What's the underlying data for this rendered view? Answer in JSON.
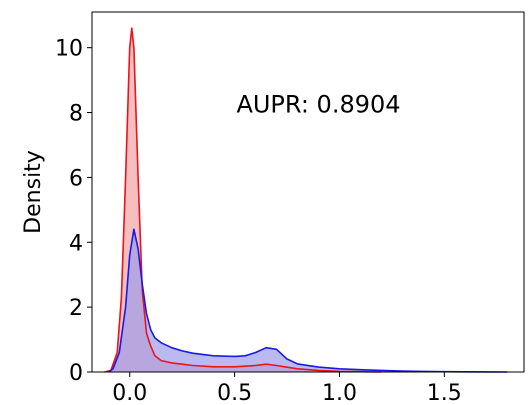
{
  "chart_data": {
    "type": "area",
    "title": "",
    "xlabel": "",
    "ylabel": "Density",
    "xlim": [
      -0.18,
      1.88
    ],
    "ylim": [
      0,
      11.1
    ],
    "x_ticks": [
      {
        "value": 0.0,
        "label": "0.0"
      },
      {
        "value": 0.5,
        "label": "0.5"
      },
      {
        "value": 1.0,
        "label": "1.0"
      },
      {
        "value": 1.5,
        "label": "1.5"
      }
    ],
    "y_ticks": [
      {
        "value": 0,
        "label": "0"
      },
      {
        "value": 2,
        "label": "2"
      },
      {
        "value": 4,
        "label": "4"
      },
      {
        "value": 6,
        "label": "6"
      },
      {
        "value": 8,
        "label": "8"
      },
      {
        "value": 10,
        "label": "10"
      }
    ],
    "grid": false,
    "annotation": {
      "text": "AUPR: 0.8904",
      "x": 0.9,
      "y": 8.0
    },
    "series": [
      {
        "color": "#e8141e",
        "fill": "#f4a3a5",
        "x": [
          -0.12,
          -0.09,
          -0.06,
          -0.04,
          -0.02,
          0.0,
          0.01,
          0.02,
          0.04,
          0.06,
          0.08,
          0.1,
          0.12,
          0.15,
          0.2,
          0.25,
          0.3,
          0.4,
          0.5,
          0.6,
          0.65,
          0.7,
          0.8,
          0.9,
          1.0,
          1.1,
          1.2
        ],
        "y": [
          0,
          0.05,
          0.6,
          2.3,
          6.0,
          10.0,
          10.6,
          10.0,
          6.0,
          2.5,
          1.2,
          0.8,
          0.5,
          0.35,
          0.28,
          0.24,
          0.2,
          0.16,
          0.16,
          0.2,
          0.24,
          0.2,
          0.1,
          0.05,
          0.02,
          0.01,
          0
        ]
      },
      {
        "color": "#1a1ae6",
        "fill": "#9c9ceb",
        "x": [
          -0.1,
          -0.08,
          -0.05,
          -0.02,
          0.0,
          0.02,
          0.04,
          0.06,
          0.08,
          0.1,
          0.12,
          0.15,
          0.2,
          0.25,
          0.3,
          0.4,
          0.5,
          0.55,
          0.6,
          0.65,
          0.7,
          0.75,
          0.8,
          0.9,
          1.0,
          1.1,
          1.2,
          1.3,
          1.4,
          1.5,
          1.6,
          1.7,
          1.8
        ],
        "y": [
          0,
          0.1,
          0.6,
          2.0,
          3.6,
          4.4,
          3.8,
          2.7,
          1.8,
          1.3,
          1.05,
          0.9,
          0.75,
          0.65,
          0.58,
          0.5,
          0.48,
          0.5,
          0.6,
          0.75,
          0.7,
          0.4,
          0.25,
          0.15,
          0.1,
          0.07,
          0.05,
          0.03,
          0.02,
          0.01,
          0.005,
          0.002,
          0
        ]
      }
    ]
  }
}
